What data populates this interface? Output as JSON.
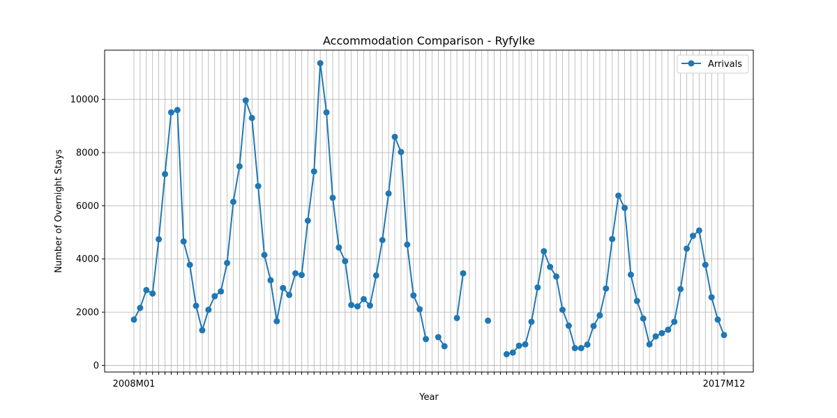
{
  "chart_data": {
    "type": "line",
    "title": "Accommodation Comparison - Ryfylke",
    "xlabel": "Year",
    "ylabel": "Number of Overnight Stays",
    "ylim": [
      -250,
      11850
    ],
    "yticks": [
      0,
      2000,
      4000,
      6000,
      8000,
      10000
    ],
    "ytick_labels": [
      "0",
      "2000",
      "4000",
      "6000",
      "8000",
      "10000"
    ],
    "xtick_labels_visible": [
      "2008M01",
      "2017M12"
    ],
    "grid": true,
    "legend": {
      "position": "top-right",
      "entries": [
        "Arrivals"
      ]
    },
    "colors": {
      "series": "#1f77b4",
      "grid": "#b0b0b0",
      "axes": "#000000"
    },
    "series": [
      {
        "name": "Arrivals",
        "values": [
          1720,
          2160,
          2830,
          2700,
          4740,
          7190,
          9510,
          9600,
          4660,
          3780,
          2240,
          1320,
          2090,
          2600,
          2780,
          3850,
          6150,
          7480,
          9960,
          9300,
          6740,
          4150,
          3200,
          1660,
          2910,
          2650,
          3460,
          3400,
          5440,
          7290,
          11360,
          9510,
          6300,
          4430,
          3920,
          2270,
          2220,
          2490,
          2250,
          3380,
          4710,
          6460,
          8590,
          8020,
          4540,
          2630,
          2110,
          990,
          null,
          1060,
          720,
          null,
          1780,
          3460,
          null,
          null,
          null,
          1680,
          null,
          null,
          420,
          480,
          740,
          790,
          1640,
          2930,
          4290,
          3700,
          3340,
          2090,
          1490,
          650,
          650,
          780,
          1480,
          1880,
          2890,
          4750,
          6380,
          5920,
          3410,
          2420,
          1760,
          790,
          1090,
          1210,
          1340,
          1640,
          2870,
          4390,
          4870,
          5070,
          3780,
          2560,
          1720,
          1140
        ]
      }
    ]
  }
}
